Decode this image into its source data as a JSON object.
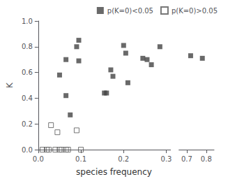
{
  "chart_data": {
    "type": "scatter",
    "xlabel": "species frequency",
    "ylabel": "K",
    "series": [
      {
        "name": "p(K=0)<0.05",
        "color": "#444444",
        "marker": "square",
        "x": [
          0.05,
          0.065,
          0.065,
          0.075,
          0.09,
          0.095,
          0.095,
          0.155,
          0.16,
          0.17,
          0.175,
          0.2,
          0.205,
          0.21,
          0.245,
          0.255,
          0.265,
          0.285,
          0.72,
          0.78
        ],
        "values": [
          0.58,
          0.7,
          0.42,
          0.27,
          0.8,
          0.85,
          0.69,
          0.44,
          0.44,
          0.62,
          0.57,
          0.81,
          0.75,
          0.52,
          0.71,
          0.7,
          0.66,
          0.8,
          0.73,
          0.71
        ]
      },
      {
        "name": "p(K=0)>0.05",
        "color": "#555555",
        "marker": "open_square",
        "x": [
          0.01,
          0.02,
          0.025,
          0.03,
          0.04,
          0.045,
          0.05,
          0.055,
          0.065,
          0.07,
          0.09,
          0.1
        ],
        "values": [
          0.0,
          0.0,
          0.0,
          0.19,
          0.0,
          0.135,
          0.0,
          0.0,
          0.0,
          0.0,
          0.15,
          0.0
        ]
      }
    ],
    "xlim": [
      [
        0.0,
        0.31
      ],
      [
        0.66,
        0.84
      ]
    ],
    "xticks": [
      [
        {
          "value": 0,
          "label": "0.0"
        },
        0.1,
        0.2,
        0.3
      ],
      [
        0.7,
        0.8
      ]
    ],
    "ylim": [
      0.0,
      1.0
    ],
    "yticks": [
      {
        "value": 0,
        "label": "0.0"
      },
      0.2,
      0.4,
      0.6,
      0.8,
      {
        "value": 1,
        "label": "1.0"
      }
    ],
    "legend": "upper right",
    "grid": false
  }
}
